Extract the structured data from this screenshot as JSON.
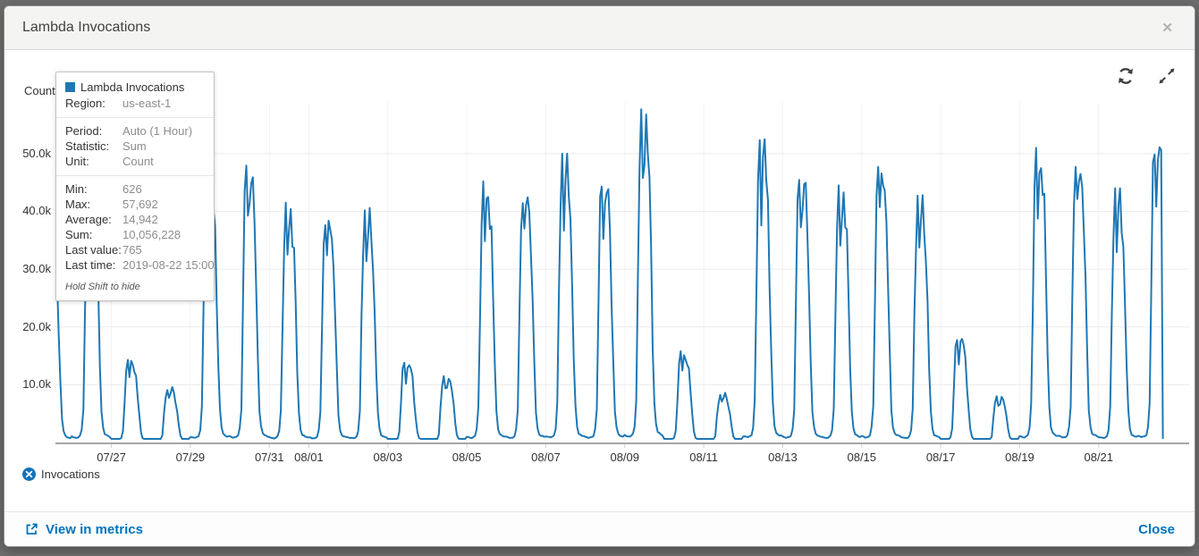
{
  "modal": {
    "title": "Lambda Invocations",
    "close_glyph": "✕"
  },
  "tooltip": {
    "title": "Lambda Invocations",
    "sections": [
      [
        {
          "label": "Region:",
          "value": "us-east-1"
        }
      ],
      [
        {
          "label": "Period:",
          "value": "Auto (1 Hour)"
        },
        {
          "label": "Statistic:",
          "value": "Sum"
        },
        {
          "label": "Unit:",
          "value": "Count"
        }
      ],
      [
        {
          "label": "Min:",
          "value": "626"
        },
        {
          "label": "Max:",
          "value": "57,692"
        },
        {
          "label": "Average:",
          "value": "14,942"
        },
        {
          "label": "Sum:",
          "value": "10,056,228"
        },
        {
          "label": "Last value:",
          "value": "765"
        },
        {
          "label": "Last time:",
          "value": "2019-08-22 15:00"
        }
      ]
    ],
    "note": "Hold Shift to hide"
  },
  "legend": {
    "items": [
      {
        "label": "Invocations",
        "color": "#1173b7"
      }
    ]
  },
  "footer": {
    "view_in_metrics": "View in metrics",
    "close": "Close"
  },
  "colors": {
    "line": "#1f77b4",
    "grid": "#ececec",
    "vgrid": "#f3f3f3",
    "axis_line": "#a6a6a6",
    "tick_mark": "#cfcfcf",
    "link": "#0073bb"
  },
  "chart_data": {
    "type": "line",
    "title": "Lambda Invocations",
    "xlabel": "",
    "ylabel": "Count",
    "legend_position": "bottom-left",
    "grid": true,
    "y_domain": [
      0,
      58800
    ],
    "x_domain": [
      "2019-07-25T14:00:00Z",
      "2019-08-23T07:00:00Z"
    ],
    "y_ticks": [
      {
        "label": "10.0k",
        "value": 10000
      },
      {
        "label": "20.0k",
        "value": 20000
      },
      {
        "label": "30.0k",
        "value": 30000
      },
      {
        "label": "40.0k",
        "value": 40000
      },
      {
        "label": "50.0k",
        "value": 50000
      }
    ],
    "x_ticks": [
      {
        "label": "07/27",
        "time": "2019-07-27T00:00:00Z"
      },
      {
        "label": "07/29",
        "time": "2019-07-29T00:00:00Z"
      },
      {
        "label": "07/31",
        "time": "2019-07-31T00:00:00Z"
      },
      {
        "label": "08/01",
        "time": "2019-08-01T00:00:00Z"
      },
      {
        "label": "08/03",
        "time": "2019-08-03T00:00:00Z"
      },
      {
        "label": "08/05",
        "time": "2019-08-05T00:00:00Z"
      },
      {
        "label": "08/07",
        "time": "2019-08-07T00:00:00Z"
      },
      {
        "label": "08/09",
        "time": "2019-08-09T00:00:00Z"
      },
      {
        "label": "08/11",
        "time": "2019-08-11T00:00:00Z"
      },
      {
        "label": "08/13",
        "time": "2019-08-13T00:00:00Z"
      },
      {
        "label": "08/15",
        "time": "2019-08-15T00:00:00Z"
      },
      {
        "label": "08/17",
        "time": "2019-08-17T00:00:00Z"
      },
      {
        "label": "08/19",
        "time": "2019-08-19T00:00:00Z"
      },
      {
        "label": "08/21",
        "time": "2019-08-21T00:00:00Z"
      }
    ],
    "stats": {
      "min": 626,
      "max": 57692,
      "average": 14942,
      "sum": 10056228,
      "last_value": 765,
      "last_time": "2019-08-22T15:00:00Z",
      "period": "Auto (1 Hour)",
      "statistic": "Sum",
      "unit": "Count",
      "region": "us-east-1"
    },
    "series": [
      {
        "name": "Invocations",
        "color": "#1f77b4",
        "daily_peaks": [
          {
            "date": "2019-07-25",
            "peak": 35000
          },
          {
            "date": "2019-07-26",
            "peak": 46000
          },
          {
            "date": "2019-07-27",
            "peak": 14500
          },
          {
            "date": "2019-07-28",
            "peak": 9600
          },
          {
            "date": "2019-07-29",
            "peak": 46000
          },
          {
            "date": "2019-07-30",
            "peak": 48600
          },
          {
            "date": "2019-07-31",
            "peak": 41500
          },
          {
            "date": "2019-08-01",
            "peak": 40000
          },
          {
            "date": "2019-08-02",
            "peak": 40600
          },
          {
            "date": "2019-08-03",
            "peak": 14000
          },
          {
            "date": "2019-08-04",
            "peak": 11500
          },
          {
            "date": "2019-08-05",
            "peak": 45200
          },
          {
            "date": "2019-08-06",
            "peak": 44500
          },
          {
            "date": "2019-08-07",
            "peak": 50000
          },
          {
            "date": "2019-08-08",
            "peak": 46200
          },
          {
            "date": "2019-08-09",
            "peak": 57692
          },
          {
            "date": "2019-08-10",
            "peak": 15800
          },
          {
            "date": "2019-08-11",
            "peak": 8600
          },
          {
            "date": "2019-08-12",
            "peak": 52500
          },
          {
            "date": "2019-08-13",
            "peak": 47000
          },
          {
            "date": "2019-08-14",
            "peak": 44500
          },
          {
            "date": "2019-08-15",
            "peak": 49500
          },
          {
            "date": "2019-08-16",
            "peak": 42800
          },
          {
            "date": "2019-08-17",
            "peak": 18500
          },
          {
            "date": "2019-08-18",
            "peak": 8000
          },
          {
            "date": "2019-08-19",
            "peak": 51000
          },
          {
            "date": "2019-08-20",
            "peak": 49800
          },
          {
            "date": "2019-08-21",
            "peak": 44000
          },
          {
            "date": "2019-08-22",
            "peak": 53500
          }
        ],
        "hourly_profile": [
          0.022,
          0.02,
          0.018,
          0.018,
          0.02,
          0.025,
          0.05,
          0.13,
          0.5,
          0.85,
          1.0,
          0.78,
          0.9,
          0.97,
          0.88,
          0.78,
          0.55,
          0.3,
          0.12,
          0.055,
          0.032,
          0.027,
          0.024,
          0.022
        ],
        "floor_value": 626,
        "last_point": {
          "time": "2019-08-22T15:00:00Z",
          "value": 765
        }
      }
    ]
  }
}
